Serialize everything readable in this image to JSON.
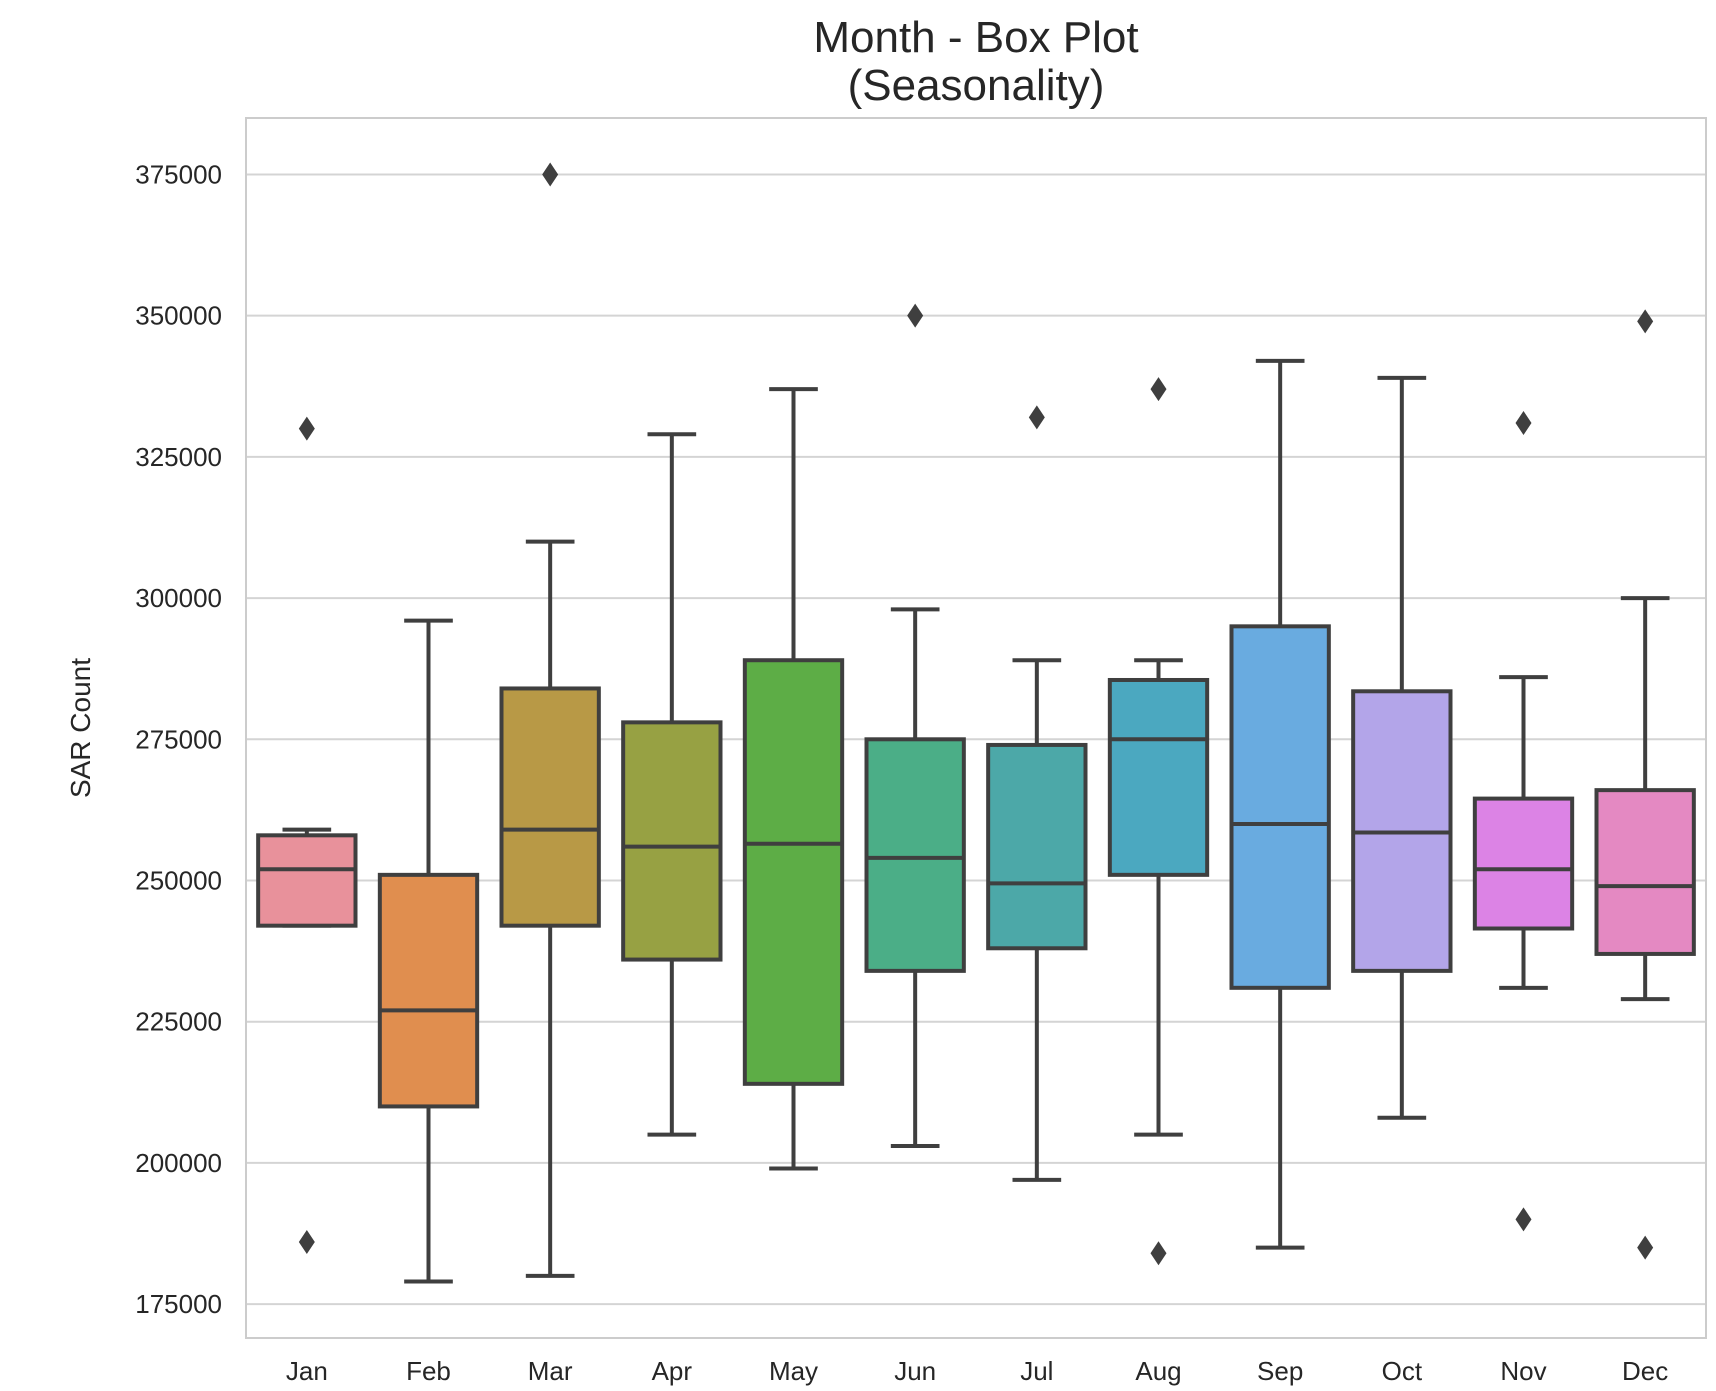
{
  "chart_data": {
    "type": "box",
    "title": "Month - Box Plot",
    "subtitle": "(Seasonality)",
    "ylabel": "SAR Count",
    "xlabel": "",
    "ylim": [
      169000,
      385000
    ],
    "yticks": [
      175000,
      200000,
      225000,
      250000,
      275000,
      300000,
      325000,
      350000,
      375000
    ],
    "ytick_labels": [
      "175000",
      "200000",
      "225000",
      "250000",
      "275000",
      "300000",
      "325000",
      "350000",
      "375000"
    ],
    "grid": true,
    "categories": [
      "Jan",
      "Feb",
      "Mar",
      "Apr",
      "May",
      "Jun",
      "Jul",
      "Aug",
      "Sep",
      "Oct",
      "Nov",
      "Dec"
    ],
    "boxes": [
      {
        "category": "Jan",
        "whisker_low": 242000,
        "q1": 242000,
        "median": 252000,
        "q3": 258000,
        "whisker_high": 259000,
        "outliers": [
          330000,
          186000
        ],
        "color": "#e8919b"
      },
      {
        "category": "Feb",
        "whisker_low": 179000,
        "q1": 210000,
        "median": 227000,
        "q3": 251000,
        "whisker_high": 296000,
        "outliers": [],
        "color": "#e08e4f"
      },
      {
        "category": "Mar",
        "whisker_low": 180000,
        "q1": 242000,
        "median": 259000,
        "q3": 284000,
        "whisker_high": 310000,
        "outliers": [
          375000
        ],
        "color": "#b89946"
      },
      {
        "category": "Apr",
        "whisker_low": 205000,
        "q1": 236000,
        "median": 256000,
        "q3": 278000,
        "whisker_high": 329000,
        "outliers": [],
        "color": "#97a143"
      },
      {
        "category": "May",
        "whisker_low": 199000,
        "q1": 214000,
        "median": 256500,
        "q3": 289000,
        "whisker_high": 337000,
        "outliers": [],
        "color": "#5dad46"
      },
      {
        "category": "Jun",
        "whisker_low": 203000,
        "q1": 234000,
        "median": 254000,
        "q3": 275000,
        "whisker_high": 298000,
        "outliers": [
          350000
        ],
        "color": "#4bae87"
      },
      {
        "category": "Jul",
        "whisker_low": 197000,
        "q1": 238000,
        "median": 249500,
        "q3": 274000,
        "whisker_high": 289000,
        "outliers": [
          332000
        ],
        "color": "#4ca8a8"
      },
      {
        "category": "Aug",
        "whisker_low": 205000,
        "q1": 251000,
        "median": 275000,
        "q3": 285500,
        "whisker_high": 289000,
        "outliers": [
          337000,
          184000
        ],
        "color": "#4ba8c0"
      },
      {
        "category": "Sep",
        "whisker_low": 185000,
        "q1": 231000,
        "median": 260000,
        "q3": 295000,
        "whisker_high": 342000,
        "outliers": [],
        "color": "#69abe0"
      },
      {
        "category": "Oct",
        "whisker_low": 208000,
        "q1": 234000,
        "median": 258500,
        "q3": 283500,
        "whisker_high": 339000,
        "outliers": [],
        "color": "#b3a5e9"
      },
      {
        "category": "Nov",
        "whisker_low": 231000,
        "q1": 241500,
        "median": 252000,
        "q3": 264500,
        "whisker_high": 286000,
        "outliers": [
          331000,
          190000
        ],
        "color": "#dc83e5"
      },
      {
        "category": "Dec",
        "whisker_low": 229000,
        "q1": 237000,
        "median": 249000,
        "q3": 266000,
        "whisker_high": 300000,
        "outliers": [
          349000,
          185000
        ],
        "color": "#e489c2"
      }
    ],
    "edge_color": "#3f3f3f",
    "grid_color": "#d4d4d4",
    "frame_color": "#cccccc"
  }
}
